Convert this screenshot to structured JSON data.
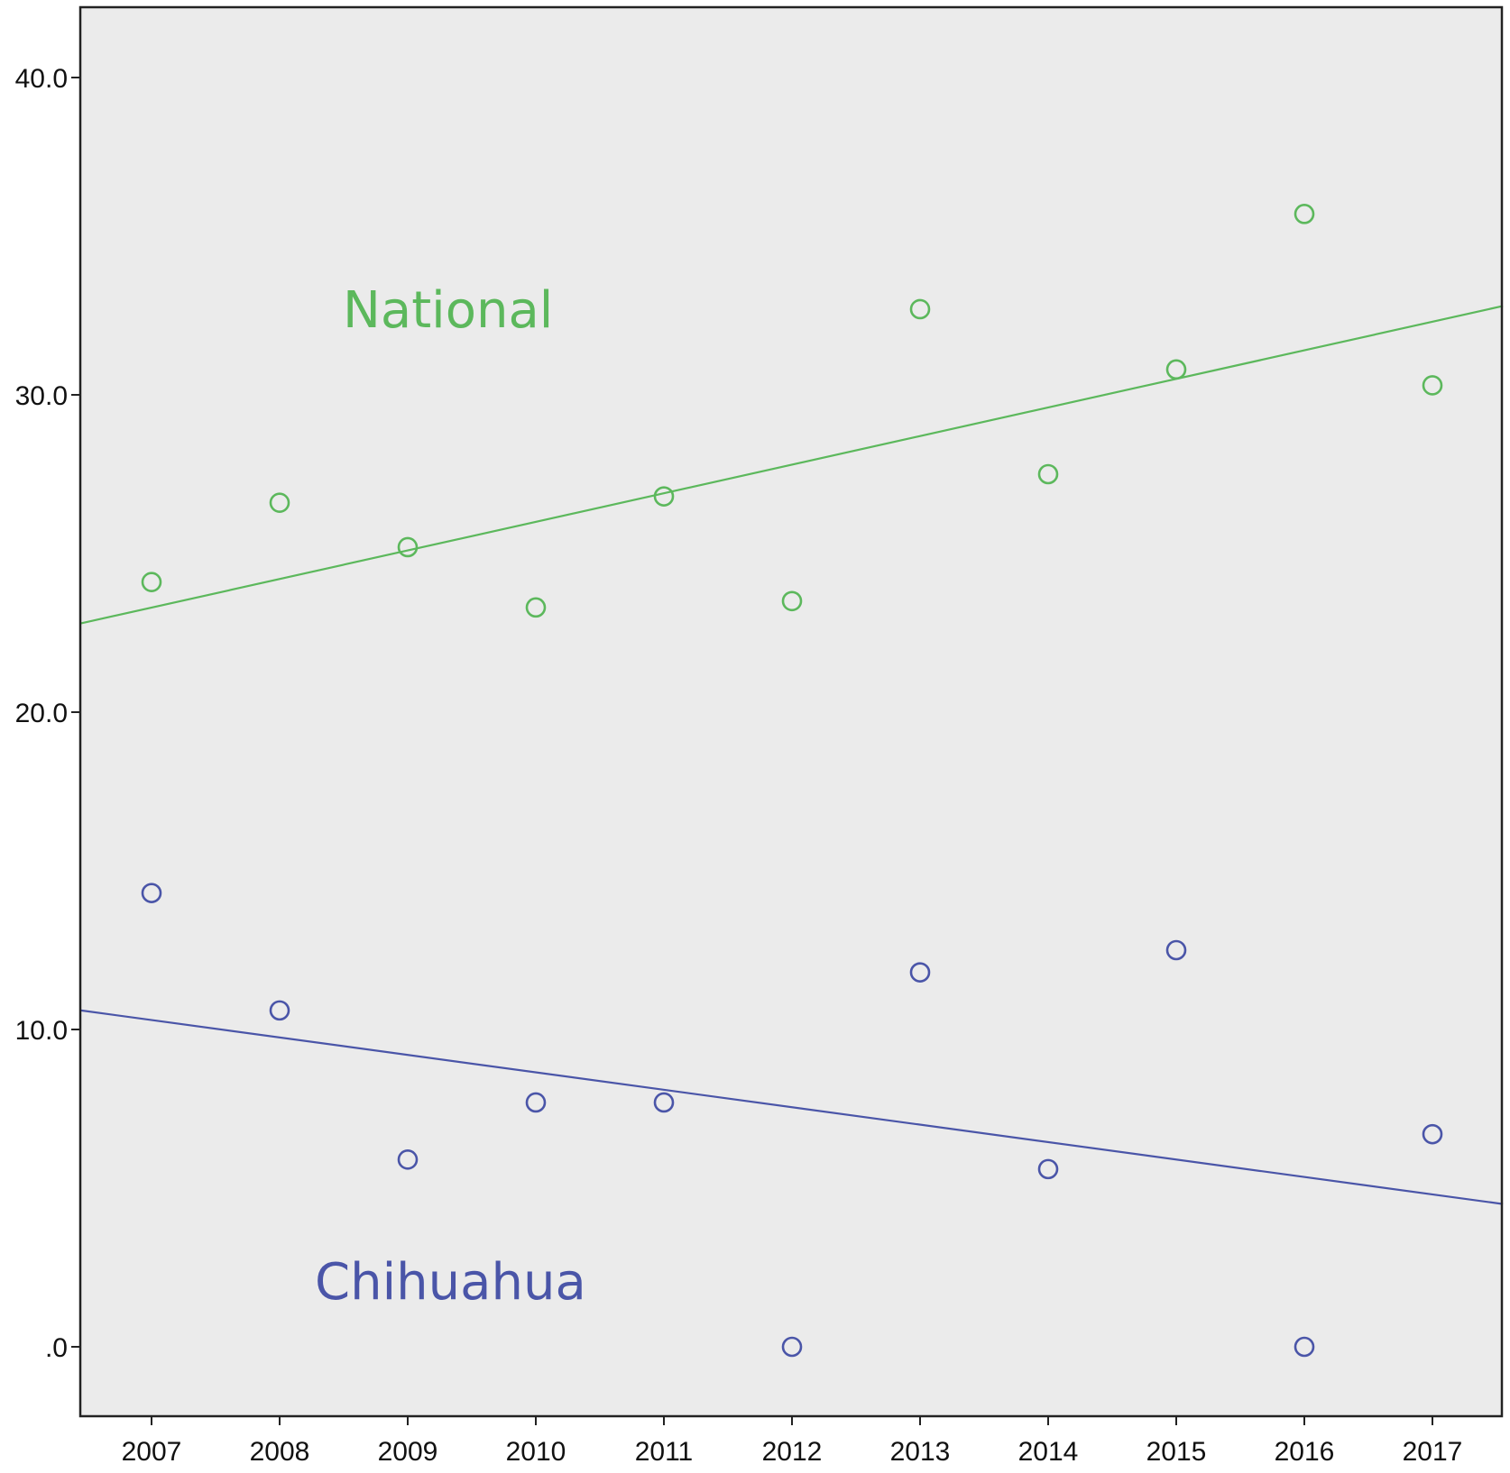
{
  "chart_data": {
    "type": "scatter",
    "title": "",
    "xlabel": "",
    "ylabel": "",
    "x_ticks": [
      "2007",
      "2008",
      "2009",
      "2010",
      "2011",
      "2012",
      "2013",
      "2014",
      "2015",
      "2016",
      "2017"
    ],
    "y_ticks": [
      ".0",
      "10.0",
      "20.0",
      "30.0",
      "40.0"
    ],
    "xlim": [
      2006.45,
      2017.55
    ],
    "ylim": [
      -2.2,
      42.2
    ],
    "grid": false,
    "plot_background": "#ebebeb",
    "series": [
      {
        "name": "National",
        "color": "#5cb85c",
        "x": [
          2007,
          2008,
          2009,
          2010,
          2011,
          2012,
          2013,
          2014,
          2015,
          2016,
          2017
        ],
        "y": [
          24.1,
          26.6,
          25.2,
          23.3,
          26.8,
          23.5,
          32.7,
          27.5,
          30.8,
          35.7,
          30.3
        ],
        "fit_line": {
          "x": [
            2006.45,
            2017.55
          ],
          "y": [
            22.8,
            32.8
          ]
        }
      },
      {
        "name": "Chihuahua",
        "color": "#4a55a8",
        "x": [
          2007,
          2008,
          2009,
          2010,
          2011,
          2012,
          2013,
          2014,
          2015,
          2016,
          2017
        ],
        "y": [
          14.3,
          10.6,
          5.9,
          7.7,
          7.7,
          0.0,
          11.8,
          5.6,
          12.5,
          0.0,
          6.7
        ],
        "fit_line": {
          "x": [
            2006.45,
            2017.55
          ],
          "y": [
            10.6,
            4.5
          ]
        }
      }
    ]
  }
}
